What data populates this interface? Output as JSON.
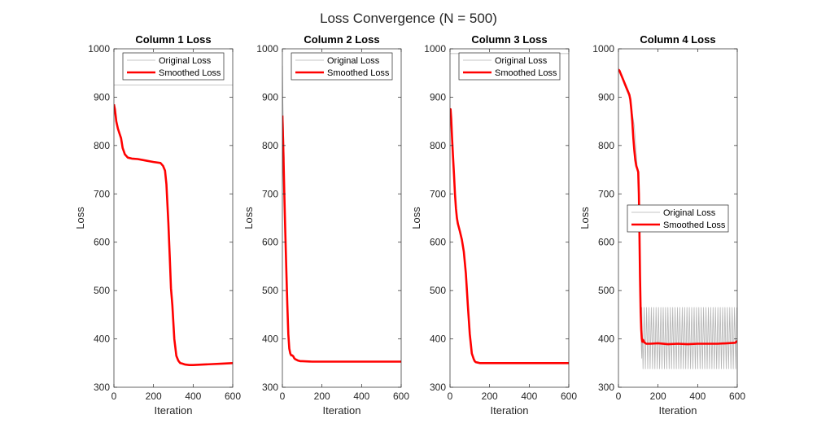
{
  "figure": {
    "title": "Loss Convergence (N = 500)"
  },
  "chart_data": [
    {
      "type": "line",
      "title": "Column 1 Loss",
      "xlabel": "Iteration",
      "ylabel": "Loss",
      "xlim": [
        0,
        600
      ],
      "ylim": [
        300,
        1000
      ],
      "xticks": [
        0,
        200,
        400,
        600
      ],
      "yticks": [
        300,
        400,
        500,
        600,
        700,
        800,
        900,
        1000
      ],
      "legend": {
        "position": "top-right"
      },
      "series": [
        {
          "name": "Original Loss",
          "color": "#b3b3b3",
          "style": "thin",
          "x": [
            0,
            600
          ],
          "y": [
            925,
            925
          ]
        },
        {
          "name": "Smoothed Loss",
          "color": "#ff0000",
          "style": "thick",
          "x": [
            0,
            5,
            12,
            20,
            28,
            36,
            44,
            55,
            70,
            90,
            120,
            160,
            200,
            235,
            248,
            258,
            265,
            270,
            275,
            282,
            288,
            295,
            305,
            315,
            325,
            335,
            345,
            360,
            380,
            400,
            450,
            500,
            550,
            600
          ],
          "y": [
            885,
            875,
            850,
            835,
            825,
            815,
            795,
            782,
            775,
            773,
            772,
            769,
            766,
            764,
            758,
            748,
            720,
            680,
            640,
            570,
            505,
            470,
            400,
            365,
            355,
            350,
            349,
            347,
            346,
            346,
            347,
            348,
            349,
            350
          ]
        }
      ]
    },
    {
      "type": "line",
      "title": "Column 2 Loss",
      "xlabel": "Iteration",
      "ylabel": "Loss",
      "xlim": [
        0,
        600
      ],
      "ylim": [
        300,
        1000
      ],
      "xticks": [
        0,
        200,
        400,
        600
      ],
      "yticks": [
        300,
        400,
        500,
        600,
        700,
        800,
        900,
        1000
      ],
      "legend": {
        "position": "top-right"
      },
      "series": [
        {
          "name": "Original Loss",
          "color": "#b3b3b3",
          "style": "thin",
          "x": [
            0,
            2,
            4,
            6,
            8,
            10
          ],
          "y": [
            965,
            900,
            860,
            830,
            800,
            770
          ]
        },
        {
          "name": "Smoothed Loss",
          "color": "#ff0000",
          "style": "thick",
          "x": [
            0,
            5,
            10,
            15,
            20,
            25,
            30,
            35,
            40,
            45,
            50,
            55,
            60,
            65,
            70,
            80,
            90,
            100,
            150,
            200,
            300,
            400,
            500,
            600
          ],
          "y": [
            862,
            790,
            700,
            620,
            540,
            470,
            410,
            380,
            370,
            366,
            366,
            364,
            360,
            358,
            357,
            355,
            354,
            354,
            353,
            353,
            353,
            353,
            353,
            353
          ]
        }
      ]
    },
    {
      "type": "line",
      "title": "Column 3 Loss",
      "xlabel": "Iteration",
      "ylabel": "Loss",
      "xlim": [
        0,
        600
      ],
      "ylim": [
        300,
        1000
      ],
      "xticks": [
        0,
        200,
        400,
        600
      ],
      "yticks": [
        300,
        400,
        500,
        600,
        700,
        800,
        900,
        1000
      ],
      "legend": {
        "position": "top-right"
      },
      "series": [
        {
          "name": "Original Loss",
          "color": "#b3b3b3",
          "style": "thin",
          "x": [
            0,
            600
          ],
          "y": [
            990,
            990
          ]
        },
        {
          "name": "Smoothed Loss",
          "color": "#ff0000",
          "style": "thick",
          "x": [
            0,
            3,
            6,
            10,
            15,
            20,
            25,
            30,
            35,
            40,
            50,
            60,
            70,
            80,
            90,
            100,
            110,
            120,
            125,
            130,
            140,
            150,
            200,
            300,
            400,
            500,
            600
          ],
          "y": [
            875,
            875,
            855,
            820,
            780,
            740,
            700,
            670,
            650,
            638,
            622,
            605,
            580,
            535,
            470,
            410,
            370,
            358,
            354,
            352,
            351,
            350,
            350,
            350,
            350,
            350,
            350
          ]
        }
      ]
    },
    {
      "type": "line",
      "title": "Column 4 Loss",
      "xlabel": "Iteration",
      "ylabel": "Loss",
      "xlim": [
        0,
        600
      ],
      "ylim": [
        300,
        1000
      ],
      "xticks": [
        0,
        200,
        400,
        600
      ],
      "yticks": [
        300,
        400,
        500,
        600,
        700,
        800,
        900,
        1000
      ],
      "legend": {
        "position": "right"
      },
      "noise": {
        "x_start": 118,
        "x_end": 600,
        "period": 12,
        "peak": 465,
        "trough": 338
      },
      "series": [
        {
          "name": "Original Loss",
          "color": "#b3b3b3",
          "style": "thin",
          "x": [
            0,
            10,
            30,
            60,
            80,
            95,
            100,
            108,
            112,
            116,
            118
          ],
          "y": [
            960,
            950,
            925,
            895,
            840,
            755,
            745,
            610,
            450,
            380,
            360
          ]
        },
        {
          "name": "Smoothed Loss",
          "color": "#ff0000",
          "style": "thick",
          "x": [
            0,
            5,
            10,
            20,
            30,
            40,
            50,
            55,
            60,
            65,
            70,
            75,
            80,
            85,
            90,
            95,
            100,
            103,
            106,
            109,
            112,
            115,
            118,
            121,
            125,
            130,
            140,
            160,
            200,
            250,
            300,
            350,
            400,
            450,
            500,
            550,
            590,
            600
          ],
          "y": [
            957,
            955,
            950,
            940,
            930,
            920,
            910,
            905,
            895,
            875,
            850,
            815,
            790,
            770,
            758,
            752,
            745,
            700,
            620,
            530,
            455,
            420,
            400,
            394,
            398,
            393,
            390,
            390,
            391,
            389,
            390,
            389,
            390,
            390,
            390,
            391,
            392,
            396
          ]
        }
      ]
    }
  ]
}
